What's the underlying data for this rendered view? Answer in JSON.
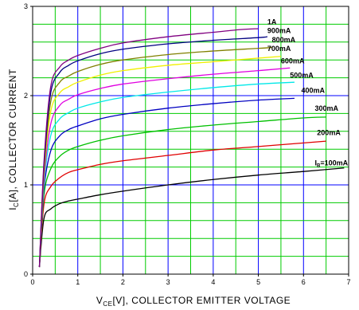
{
  "chart_data": {
    "type": "line",
    "title": "",
    "xlabel": {
      "main": "V",
      "sub": "CE",
      "rest": "[V], COLLECTOR EMITTER VOLTAGE"
    },
    "ylabel": {
      "main": "I",
      "sub": "C",
      "rest": "[A], COLLECTOR CURRENT"
    },
    "xlim": [
      0,
      7
    ],
    "ylim": [
      0,
      3
    ],
    "x_ticks": [
      "0",
      "1",
      "2",
      "3",
      "4",
      "5",
      "6",
      "7"
    ],
    "y_ticks": [
      "0",
      "1",
      "2",
      "3"
    ],
    "grid": true,
    "series": [
      {
        "name": "100mA",
        "label_prefix": "I",
        "label_sub": "B",
        "label_rest": "=100mA",
        "color": "#000000",
        "points": [
          [
            0.15,
            0.08
          ],
          [
            0.25,
            0.62
          ],
          [
            0.4,
            0.73
          ],
          [
            0.6,
            0.79
          ],
          [
            0.8,
            0.82
          ],
          [
            1.0,
            0.84
          ],
          [
            1.5,
            0.89
          ],
          [
            2.0,
            0.93
          ],
          [
            3.0,
            1.0
          ],
          [
            4.0,
            1.06
          ],
          [
            5.0,
            1.11
          ],
          [
            6.0,
            1.15
          ],
          [
            6.9,
            1.19
          ]
        ]
      },
      {
        "name": "200mA",
        "label_text": "200mA",
        "color": "#e00000",
        "points": [
          [
            0.15,
            0.08
          ],
          [
            0.25,
            0.78
          ],
          [
            0.4,
            0.98
          ],
          [
            0.6,
            1.08
          ],
          [
            0.8,
            1.14
          ],
          [
            1.0,
            1.17
          ],
          [
            1.5,
            1.23
          ],
          [
            2.0,
            1.27
          ],
          [
            3.0,
            1.33
          ],
          [
            4.0,
            1.39
          ],
          [
            5.0,
            1.43
          ],
          [
            6.0,
            1.47
          ],
          [
            6.5,
            1.49
          ]
        ]
      },
      {
        "name": "300mA",
        "label_text": "300mA",
        "color": "#00c000",
        "points": [
          [
            0.15,
            0.08
          ],
          [
            0.25,
            0.88
          ],
          [
            0.4,
            1.18
          ],
          [
            0.6,
            1.32
          ],
          [
            0.8,
            1.39
          ],
          [
            1.0,
            1.43
          ],
          [
            1.5,
            1.5
          ],
          [
            2.0,
            1.55
          ],
          [
            3.0,
            1.62
          ],
          [
            4.0,
            1.67
          ],
          [
            5.0,
            1.71
          ],
          [
            6.0,
            1.75
          ],
          [
            6.5,
            1.76
          ]
        ]
      },
      {
        "name": "400mA",
        "label_text": "400mA",
        "color": "#0000c0",
        "points": [
          [
            0.15,
            0.08
          ],
          [
            0.25,
            0.95
          ],
          [
            0.4,
            1.38
          ],
          [
            0.6,
            1.55
          ],
          [
            0.8,
            1.62
          ],
          [
            1.0,
            1.66
          ],
          [
            1.5,
            1.74
          ],
          [
            2.0,
            1.79
          ],
          [
            3.0,
            1.86
          ],
          [
            4.0,
            1.91
          ],
          [
            5.0,
            1.95
          ],
          [
            5.8,
            1.97
          ]
        ]
      },
      {
        "name": "500mA",
        "label_text": "500mA",
        "color": "#00e8e8",
        "points": [
          [
            0.15,
            0.08
          ],
          [
            0.25,
            1.0
          ],
          [
            0.4,
            1.55
          ],
          [
            0.6,
            1.74
          ],
          [
            0.8,
            1.81
          ],
          [
            1.0,
            1.86
          ],
          [
            1.5,
            1.93
          ],
          [
            2.0,
            1.98
          ],
          [
            3.0,
            2.04
          ],
          [
            4.0,
            2.09
          ],
          [
            5.0,
            2.13
          ],
          [
            5.8,
            2.15
          ]
        ]
      },
      {
        "name": "600mA",
        "label_text": "600mA",
        "color": "#e000e0",
        "points": [
          [
            0.15,
            0.08
          ],
          [
            0.25,
            1.05
          ],
          [
            0.4,
            1.68
          ],
          [
            0.6,
            1.89
          ],
          [
            0.8,
            1.96
          ],
          [
            1.0,
            2.01
          ],
          [
            1.5,
            2.08
          ],
          [
            2.0,
            2.13
          ],
          [
            3.0,
            2.19
          ],
          [
            4.0,
            2.24
          ],
          [
            5.0,
            2.28
          ],
          [
            5.7,
            2.31
          ]
        ]
      },
      {
        "name": "700mA",
        "label_text": "700mA",
        "color": "#f0f000",
        "points": [
          [
            0.15,
            0.08
          ],
          [
            0.25,
            1.1
          ],
          [
            0.4,
            1.82
          ],
          [
            0.6,
            2.03
          ],
          [
            0.8,
            2.1
          ],
          [
            1.0,
            2.15
          ],
          [
            1.5,
            2.23
          ],
          [
            2.0,
            2.28
          ],
          [
            3.0,
            2.34
          ],
          [
            4.0,
            2.38
          ],
          [
            5.0,
            2.42
          ],
          [
            5.5,
            2.44
          ]
        ]
      },
      {
        "name": "800mA",
        "label_text": "800mA",
        "color": "#808000",
        "points": [
          [
            0.15,
            0.08
          ],
          [
            0.25,
            1.15
          ],
          [
            0.4,
            1.93
          ],
          [
            0.6,
            2.15
          ],
          [
            0.8,
            2.22
          ],
          [
            1.0,
            2.27
          ],
          [
            1.5,
            2.35
          ],
          [
            2.0,
            2.4
          ],
          [
            3.0,
            2.46
          ],
          [
            4.0,
            2.5
          ],
          [
            5.0,
            2.53
          ],
          [
            5.3,
            2.54
          ]
        ]
      },
      {
        "name": "900mA",
        "label_text": "900mA",
        "color": "#000080",
        "points": [
          [
            0.15,
            0.08
          ],
          [
            0.25,
            1.2
          ],
          [
            0.4,
            2.03
          ],
          [
            0.6,
            2.26
          ],
          [
            0.8,
            2.34
          ],
          [
            1.0,
            2.39
          ],
          [
            1.5,
            2.47
          ],
          [
            2.0,
            2.52
          ],
          [
            3.0,
            2.58
          ],
          [
            4.0,
            2.62
          ],
          [
            5.0,
            2.65
          ],
          [
            5.2,
            2.66
          ]
        ]
      },
      {
        "name": "1A",
        "label_text": "1A",
        "color": "#800080",
        "points": [
          [
            0.15,
            0.08
          ],
          [
            0.25,
            1.25
          ],
          [
            0.4,
            2.1
          ],
          [
            0.6,
            2.32
          ],
          [
            0.8,
            2.4
          ],
          [
            1.0,
            2.45
          ],
          [
            1.5,
            2.53
          ],
          [
            2.0,
            2.59
          ],
          [
            3.0,
            2.66
          ],
          [
            4.0,
            2.71
          ],
          [
            4.6,
            2.74
          ],
          [
            5.0,
            2.75
          ]
        ]
      }
    ],
    "label_positions": [
      {
        "series": "100mA",
        "x": 6.25,
        "y": 1.22
      },
      {
        "series": "200mA",
        "x": 6.3,
        "y": 1.56
      },
      {
        "series": "300mA",
        "x": 6.25,
        "y": 1.83
      },
      {
        "series": "400mA",
        "x": 5.95,
        "y": 2.03
      },
      {
        "series": "500mA",
        "x": 5.7,
        "y": 2.2
      },
      {
        "series": "600mA",
        "x": 5.5,
        "y": 2.36
      },
      {
        "series": "700mA",
        "x": 5.2,
        "y": 2.5
      },
      {
        "series": "800mA",
        "x": 5.3,
        "y": 2.6
      },
      {
        "series": "900mA",
        "x": 5.2,
        "y": 2.7
      },
      {
        "series": "1A",
        "x": 5.2,
        "y": 2.8
      }
    ]
  }
}
